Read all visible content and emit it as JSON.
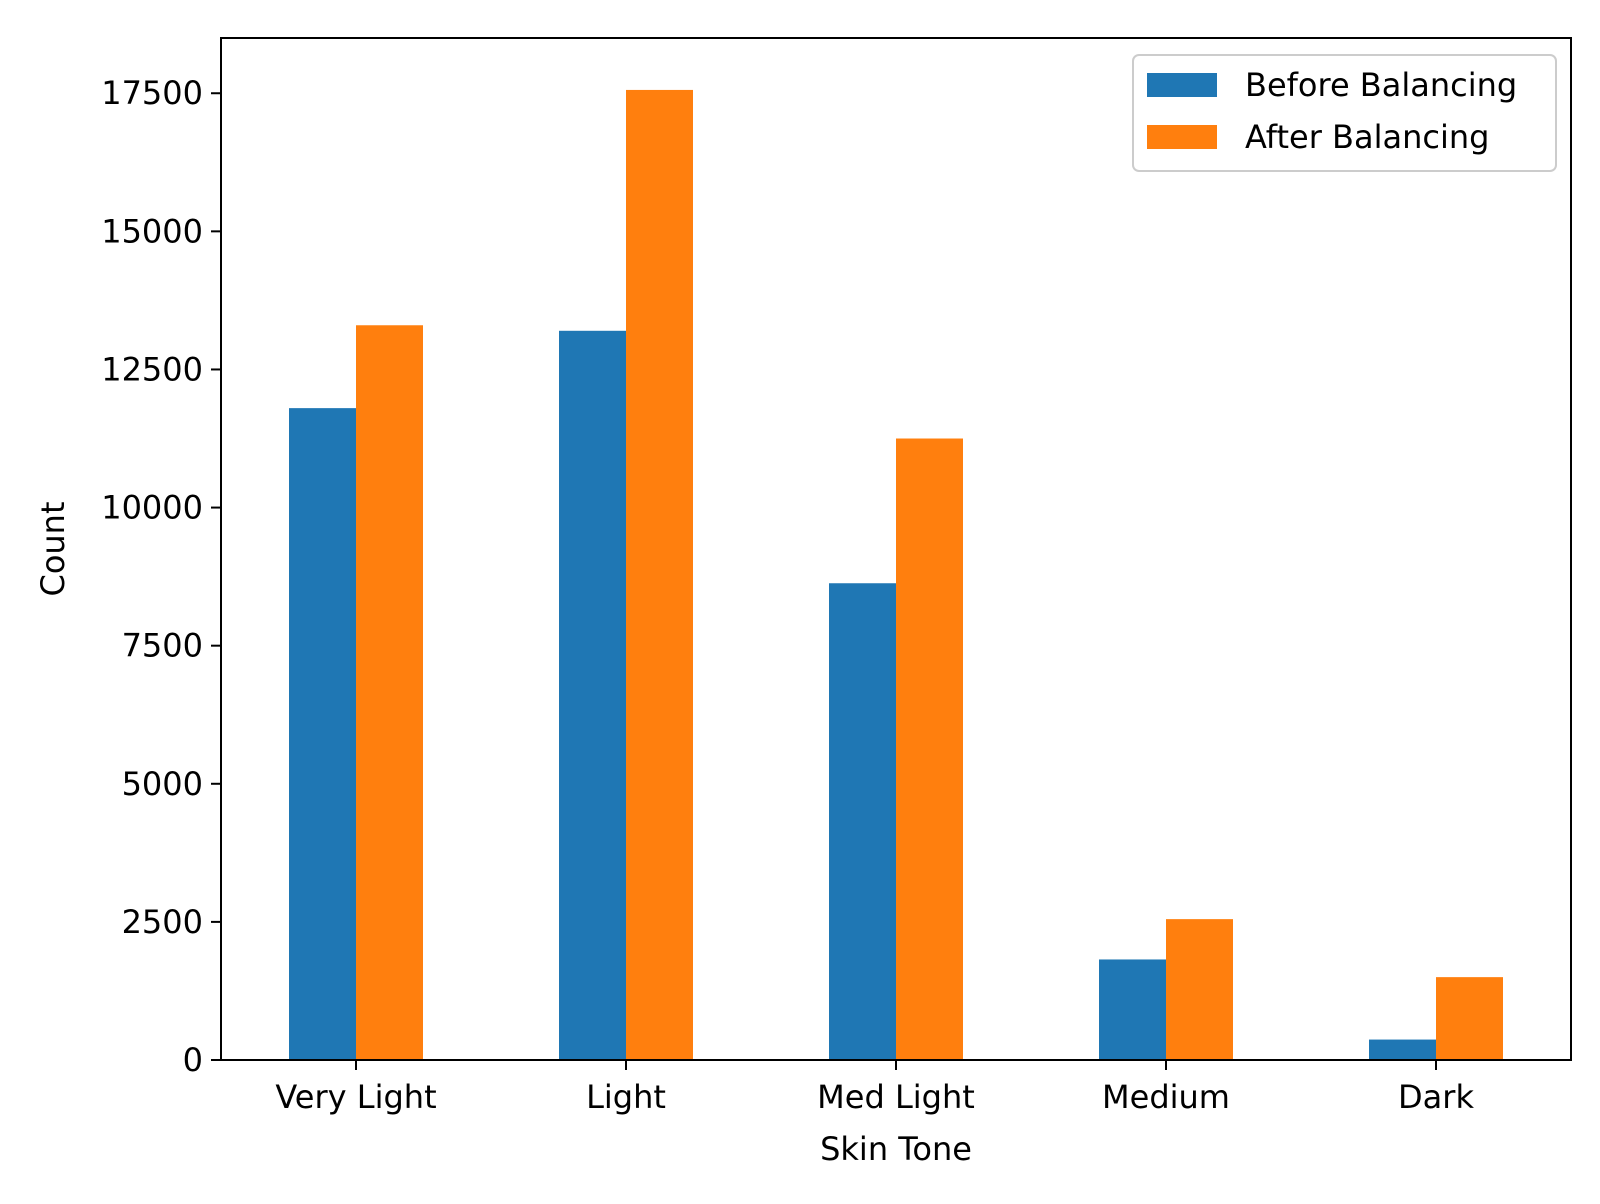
{
  "chart_data": {
    "type": "bar",
    "title": "",
    "xlabel": "Skin Tone",
    "ylabel": "Count",
    "categories": [
      "Very Light",
      "Light",
      "Med Light",
      "Medium",
      "Dark"
    ],
    "series": [
      {
        "name": "Before Balancing",
        "color": "#1f77b4",
        "values": [
          11800,
          13200,
          8630,
          1820,
          370
        ]
      },
      {
        "name": "After Balancing",
        "color": "#ff7f0e",
        "values": [
          13300,
          17560,
          11250,
          2550,
          1500
        ]
      }
    ],
    "ylim": [
      0,
      18500
    ],
    "yticks": [
      0,
      2500,
      5000,
      7500,
      10000,
      12500,
      15000,
      17500
    ],
    "ytick_labels": [
      "0",
      "2500",
      "5000",
      "7500",
      "10000",
      "12500",
      "15000",
      "17500"
    ],
    "grid": false,
    "legend_position": "top-right"
  }
}
